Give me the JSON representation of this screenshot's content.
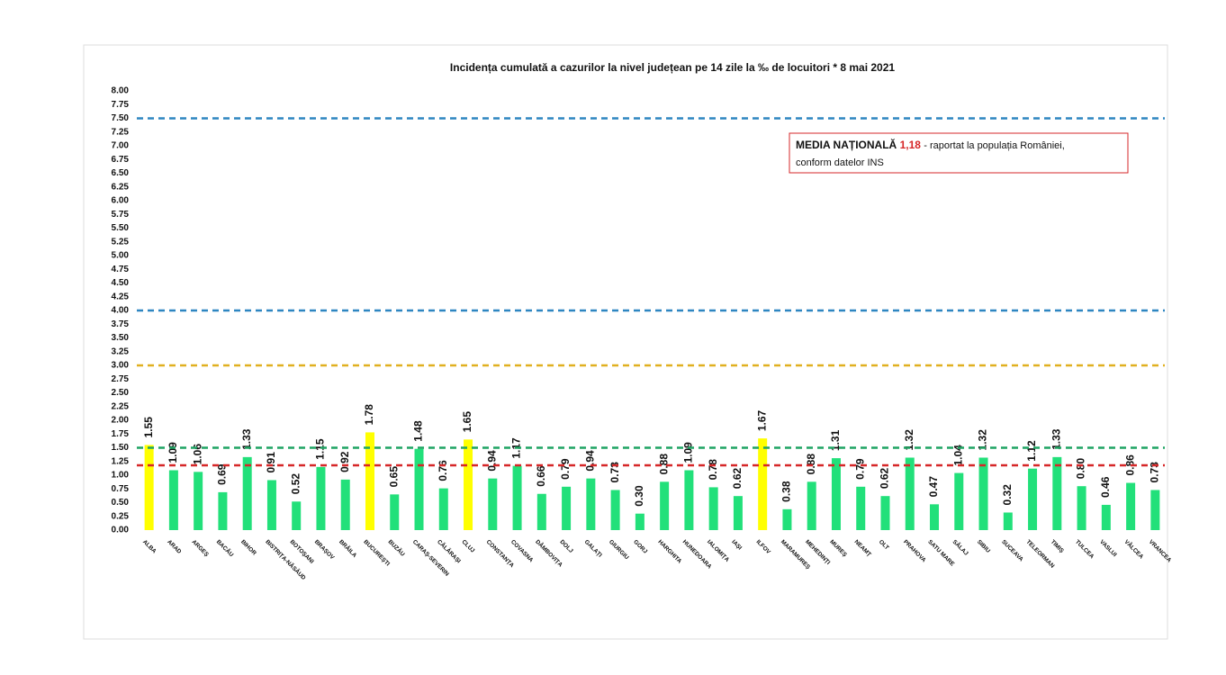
{
  "chart_data": {
    "type": "bar",
    "title": "Incidența cumulată a cazurilor la nivel județean pe 14 zile la ‰ de locuitori *  8 mai 2021",
    "categories": [
      "ALBA",
      "ARAD",
      "ARGEȘ",
      "BACĂU",
      "BIHOR",
      "BISTRIȚA-NĂSĂUD",
      "BOTOȘANI",
      "BRAȘOV",
      "BRĂILA",
      "BUCUREȘTI",
      "BUZĂU",
      "CARAȘ-SEVERIN",
      "CĂLĂRAȘI",
      "CLUJ",
      "CONSTANȚA",
      "COVASNA",
      "DÂMBOVIȚA",
      "DOLJ",
      "GALAȚI",
      "GIURGIU",
      "GORJ",
      "HARGHITA",
      "HUNEDOARA",
      "IALOMIȚA",
      "IAȘI",
      "ILFOV",
      "MARAMUREȘ",
      "MEHEDINȚI",
      "MUREȘ",
      "NEAMȚ",
      "OLT",
      "PRAHOVA",
      "SATU MARE",
      "SĂLAJ",
      "SIBIU",
      "SUCEAVA",
      "TELEORMAN",
      "TIMIȘ",
      "TULCEA",
      "VASLUI",
      "VÂLCEA",
      "VRANCEA"
    ],
    "values": [
      1.55,
      1.09,
      1.06,
      0.69,
      1.33,
      0.91,
      0.52,
      1.15,
      0.92,
      1.78,
      0.65,
      1.48,
      0.76,
      1.65,
      0.94,
      1.17,
      0.66,
      0.79,
      0.94,
      0.73,
      0.3,
      0.88,
      1.09,
      0.78,
      0.62,
      1.67,
      0.38,
      0.88,
      1.31,
      0.79,
      0.62,
      1.32,
      0.47,
      1.04,
      1.32,
      0.32,
      1.12,
      1.33,
      0.8,
      0.46,
      0.86,
      0.73
    ],
    "value_labels": [
      "1.55",
      "1.09",
      "1.06",
      "0.69",
      "1.33",
      "0.91",
      "0.52",
      "1.15",
      "0.92",
      "1.78",
      "0.65",
      "1.48",
      "0.76",
      "1.65",
      "0.94",
      "1.17",
      "0.66",
      "0.79",
      "0.94",
      "0.73",
      "0.30",
      "0.88",
      "1.09",
      "0.78",
      "0.62",
      "1.67",
      "0.38",
      "0.88",
      "1.31",
      "0.79",
      "0.62",
      "1.32",
      "0.47",
      "1.04",
      "1.32",
      "0.32",
      "1.12",
      "1.33",
      "0.80",
      "0.46",
      "0.86",
      "0.73"
    ],
    "colors": [
      "#ffff00",
      "#22e07a",
      "#22e07a",
      "#22e07a",
      "#22e07a",
      "#22e07a",
      "#22e07a",
      "#22e07a",
      "#22e07a",
      "#ffff00",
      "#22e07a",
      "#22e07a",
      "#22e07a",
      "#ffff00",
      "#22e07a",
      "#22e07a",
      "#22e07a",
      "#22e07a",
      "#22e07a",
      "#22e07a",
      "#22e07a",
      "#22e07a",
      "#22e07a",
      "#22e07a",
      "#22e07a",
      "#ffff00",
      "#22e07a",
      "#22e07a",
      "#22e07a",
      "#22e07a",
      "#22e07a",
      "#22e07a",
      "#22e07a",
      "#22e07a",
      "#22e07a",
      "#22e07a",
      "#22e07a",
      "#22e07a",
      "#22e07a",
      "#22e07a",
      "#22e07a",
      "#22e07a"
    ],
    "ylim": [
      0,
      8
    ],
    "yticks": [
      {
        "value": 0,
        "label": "0.00"
      },
      {
        "value": 0.25,
        "label": "0.25"
      },
      {
        "value": 0.5,
        "label": "0.50"
      },
      {
        "value": 0.75,
        "label": "0.75"
      },
      {
        "value": 1,
        "label": "1.00"
      },
      {
        "value": 1.25,
        "label": "1.25"
      },
      {
        "value": 1.5,
        "label": "1.50"
      },
      {
        "value": 1.75,
        "label": "1.75"
      },
      {
        "value": 2,
        "label": "2.00"
      },
      {
        "value": 2.25,
        "label": "2.25"
      },
      {
        "value": 2.5,
        "label": "2.50"
      },
      {
        "value": 2.75,
        "label": "2.75"
      },
      {
        "value": 3,
        "label": "3.00"
      },
      {
        "value": 3.25,
        "label": "3.25"
      },
      {
        "value": 3.5,
        "label": "3.50"
      },
      {
        "value": 3.75,
        "label": "3.75"
      },
      {
        "value": 4,
        "label": "4.00"
      },
      {
        "value": 4.25,
        "label": "4.25"
      },
      {
        "value": 4.5,
        "label": "4.50"
      },
      {
        "value": 4.75,
        "label": "4.75"
      },
      {
        "value": 5,
        "label": "5.00"
      },
      {
        "value": 5.25,
        "label": "5.25"
      },
      {
        "value": 5.5,
        "label": "5.50"
      },
      {
        "value": 5.75,
        "label": "5.75"
      },
      {
        "value": 6,
        "label": "6.00"
      },
      {
        "value": 6.25,
        "label": "6.25"
      },
      {
        "value": 6.5,
        "label": "6.50"
      },
      {
        "value": 6.75,
        "label": "6.75"
      },
      {
        "value": 7,
        "label": "7.00"
      },
      {
        "value": 7.25,
        "label": "7.25"
      },
      {
        "value": 7.5,
        "label": "7.50"
      },
      {
        "value": 7.75,
        "label": "7.75"
      },
      {
        "value": 8,
        "label": "8.00"
      }
    ],
    "grid": false,
    "reference_lines": [
      {
        "value": 7.5,
        "color": "#2e86c1"
      },
      {
        "value": 4,
        "color": "#2e86c1"
      },
      {
        "value": 3,
        "color": "#e0b020"
      },
      {
        "value": 1.5,
        "color": "#1fa463"
      },
      {
        "value": 1.18,
        "color": "#d62728"
      }
    ],
    "annotation": {
      "label": "MEDIA NAȚIONALĂ",
      "value": "1,18",
      "text": "- raportat la populația României,",
      "text2": "conform datelor INS"
    }
  }
}
